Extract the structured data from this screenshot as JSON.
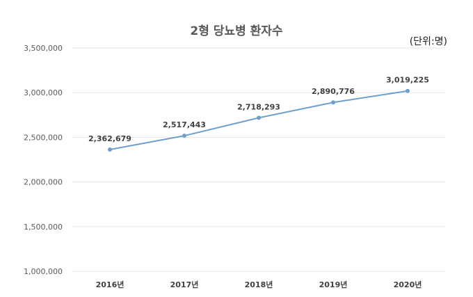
{
  "chart_data": {
    "type": "line",
    "title": "2형 당뇨병 환자수",
    "unit": "(단위:명)",
    "categories": [
      "2016년",
      "2017년",
      "2018년",
      "2019년",
      "2020년"
    ],
    "series": [
      {
        "values": [
          2362679,
          2517443,
          2718293,
          2890776,
          3019225
        ],
        "value_labels": [
          "2,362,679",
          "2,517,443",
          "2,718,293",
          "2,890,776",
          "3,019,225"
        ],
        "color": "#6e9fcc"
      }
    ],
    "ylim": [
      1000000,
      3500000
    ],
    "yticks": [
      1000000,
      1500000,
      2000000,
      2500000,
      3000000,
      3500000
    ],
    "ytick_labels": [
      "1,000,000",
      "1,500,000",
      "2,000,000",
      "2,500,000",
      "3,000,000",
      "3,500,000"
    ],
    "grid": true,
    "legend": "none",
    "colors": {
      "line": "#6e9fcc",
      "grid": "#e6e6e6"
    }
  }
}
